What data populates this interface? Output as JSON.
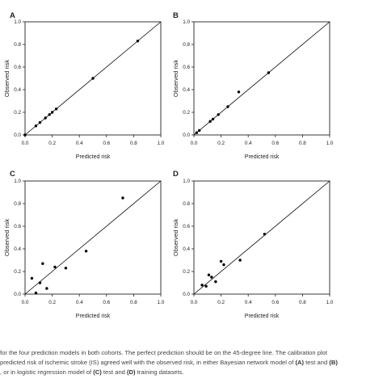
{
  "chart_data": [
    {
      "type": "scatter",
      "panel_label": "A",
      "xlabel": "Predicted risk",
      "ylabel": "Observed risk",
      "xlim": [
        0.0,
        1.0
      ],
      "ylim": [
        0.0,
        1.0
      ],
      "xticks": [
        "0.0",
        "0.2",
        "0.4",
        "0.6",
        "0.8",
        "1.0"
      ],
      "yticks": [
        "0.0",
        "0.2",
        "0.4",
        "0.6",
        "0.8",
        "1.0"
      ],
      "reference_line": "45-degree",
      "grid": false,
      "points": [
        {
          "x": 0.0,
          "y": 0.0
        },
        {
          "x": 0.08,
          "y": 0.08
        },
        {
          "x": 0.11,
          "y": 0.11
        },
        {
          "x": 0.15,
          "y": 0.15
        },
        {
          "x": 0.18,
          "y": 0.18
        },
        {
          "x": 0.2,
          "y": 0.2
        },
        {
          "x": 0.23,
          "y": 0.23
        },
        {
          "x": 0.5,
          "y": 0.5
        },
        {
          "x": 0.83,
          "y": 0.83
        }
      ]
    },
    {
      "type": "scatter",
      "panel_label": "B",
      "xlabel": "Predicted risk",
      "ylabel": "Observed risk",
      "xlim": [
        0.0,
        1.0
      ],
      "ylim": [
        0.0,
        1.0
      ],
      "xticks": [
        "0.0",
        "0.2",
        "0.4",
        "0.6",
        "0.8",
        "1.0"
      ],
      "yticks": [
        "0.0",
        "0.2",
        "0.4",
        "0.6",
        "0.8",
        "1.0"
      ],
      "reference_line": "45-degree",
      "grid": false,
      "points": [
        {
          "x": 0.02,
          "y": 0.02
        },
        {
          "x": 0.04,
          "y": 0.04
        },
        {
          "x": 0.12,
          "y": 0.12
        },
        {
          "x": 0.14,
          "y": 0.14
        },
        {
          "x": 0.18,
          "y": 0.18
        },
        {
          "x": 0.25,
          "y": 0.25
        },
        {
          "x": 0.33,
          "y": 0.38
        },
        {
          "x": 0.55,
          "y": 0.55
        }
      ]
    },
    {
      "type": "scatter",
      "panel_label": "C",
      "xlabel": "Predicted risk",
      "ylabel": "Observed risk",
      "xlim": [
        0.0,
        1.0
      ],
      "ylim": [
        0.0,
        1.0
      ],
      "xticks": [
        "0.0",
        "0.2",
        "0.4",
        "0.6",
        "0.8",
        "1.0"
      ],
      "yticks": [
        "0.0",
        "0.2",
        "0.4",
        "0.6",
        "0.8",
        "1.0"
      ],
      "reference_line": "45-degree",
      "grid": false,
      "points": [
        {
          "x": 0.05,
          "y": 0.14
        },
        {
          "x": 0.08,
          "y": 0.01
        },
        {
          "x": 0.11,
          "y": 0.1
        },
        {
          "x": 0.13,
          "y": 0.27
        },
        {
          "x": 0.16,
          "y": 0.05
        },
        {
          "x": 0.22,
          "y": 0.24
        },
        {
          "x": 0.3,
          "y": 0.23
        },
        {
          "x": 0.45,
          "y": 0.38
        },
        {
          "x": 0.72,
          "y": 0.85
        }
      ]
    },
    {
      "type": "scatter",
      "panel_label": "D",
      "xlabel": "Predicted risk",
      "ylabel": "Observed risk",
      "xlim": [
        0.0,
        1.0
      ],
      "ylim": [
        0.0,
        1.0
      ],
      "xticks": [
        "0.0",
        "0.2",
        "0.4",
        "0.6",
        "0.8",
        "1.0"
      ],
      "yticks": [
        "0.0",
        "0.2",
        "0.4",
        "0.6",
        "0.8",
        "1.0"
      ],
      "reference_line": "45-degree",
      "grid": false,
      "points": [
        {
          "x": 0.06,
          "y": 0.08
        },
        {
          "x": 0.09,
          "y": 0.07
        },
        {
          "x": 0.11,
          "y": 0.17
        },
        {
          "x": 0.13,
          "y": 0.15
        },
        {
          "x": 0.16,
          "y": 0.11
        },
        {
          "x": 0.2,
          "y": 0.29
        },
        {
          "x": 0.22,
          "y": 0.26
        },
        {
          "x": 0.34,
          "y": 0.3
        },
        {
          "x": 0.52,
          "y": 0.53
        }
      ]
    }
  ],
  "caption": {
    "line1": "for the four prediction models in both cohorts. The perfect prediction should be on the 45-degree line. The calibration plot",
    "line2_pre": "predicted risk of ischemic stroke (IS) agreed well with the observed risk, in either Bayesian network model of ",
    "line2_bold1": "(A)",
    "line2_mid": " test and ",
    "line2_bold2": "(B)",
    "line3_pre": ", or in logistic regression model of ",
    "line3_bold1": "(C)",
    "line3_mid": " test and ",
    "line3_bold2": "(D)",
    "line3_post": " training datasets."
  },
  "colors": {
    "axis": "#222222",
    "point": "#000000",
    "line": "#000000",
    "text": "#222222",
    "caption": "#444444"
  }
}
